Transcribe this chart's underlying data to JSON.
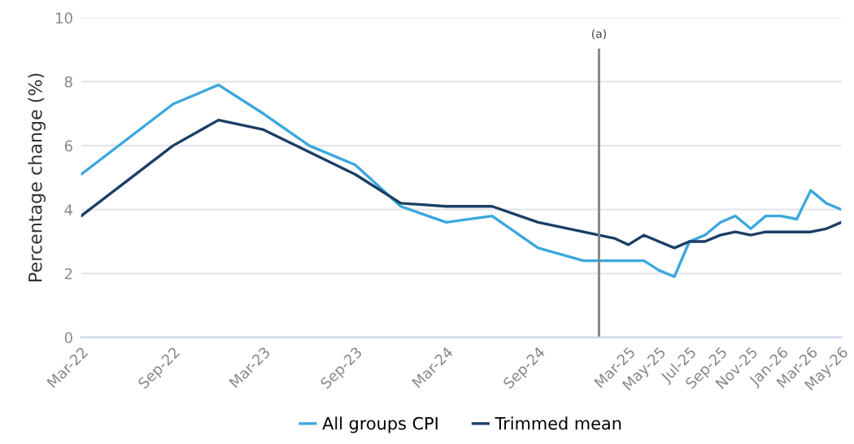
{
  "chart_data": {
    "type": "line",
    "ylabel": "Percentage change (%)",
    "xlim": [
      "2022-03",
      "2026-05"
    ],
    "ylim": [
      0,
      10
    ],
    "yticks": [
      0,
      2,
      4,
      6,
      8,
      10
    ],
    "xticks": [
      {
        "value": "2022-03",
        "label": "Mar-22"
      },
      {
        "value": "2022-09",
        "label": "Sep-22"
      },
      {
        "value": "2023-03",
        "label": "Mar-23"
      },
      {
        "value": "2023-09",
        "label": "Sep-23"
      },
      {
        "value": "2024-03",
        "label": "Mar-24"
      },
      {
        "value": "2024-09",
        "label": "Sep-24"
      },
      {
        "value": "2025-03",
        "label": "Mar-25"
      },
      {
        "value": "2025-05",
        "label": "May-25"
      },
      {
        "value": "2025-07",
        "label": "Jul-25"
      },
      {
        "value": "2025-09",
        "label": "Sep-25"
      },
      {
        "value": "2025-11",
        "label": "Nov-25"
      },
      {
        "value": "2026-01",
        "label": "Jan-26"
      },
      {
        "value": "2026-03",
        "label": "Mar-26"
      },
      {
        "value": "2026-05",
        "label": "May-26"
      }
    ],
    "x": [
      "2022-03",
      "2022-06",
      "2022-09",
      "2022-12",
      "2023-03",
      "2023-06",
      "2023-09",
      "2023-12",
      "2024-03",
      "2024-06",
      "2024-09",
      "2024-12",
      "2025-01",
      "2025-02",
      "2025-03",
      "2025-04",
      "2025-05",
      "2025-06",
      "2025-07",
      "2025-08",
      "2025-09",
      "2025-10",
      "2025-11",
      "2025-12",
      "2026-01",
      "2026-02",
      "2026-03",
      "2026-04",
      "2026-05"
    ],
    "series": [
      {
        "name": "All groups CPI",
        "color": "#3ba7dd",
        "values": [
          5.1,
          6.2,
          7.3,
          7.9,
          7.0,
          6.0,
          5.4,
          4.1,
          3.6,
          3.8,
          2.8,
          2.4,
          2.4,
          2.4,
          2.4,
          2.4,
          2.1,
          1.9,
          3.0,
          3.2,
          3.6,
          3.8,
          3.4,
          3.8,
          3.8,
          3.7,
          4.6,
          4.2,
          4.0
        ]
      },
      {
        "name": "Trimmed mean",
        "color": "#1a3f66",
        "values": [
          3.8,
          4.9,
          6.0,
          6.8,
          6.5,
          5.8,
          5.1,
          4.2,
          4.1,
          4.1,
          3.6,
          3.3,
          3.2,
          3.1,
          2.9,
          3.2,
          3.0,
          2.8,
          3.0,
          3.0,
          3.2,
          3.3,
          3.2,
          3.3,
          3.3,
          3.3,
          3.3,
          3.4,
          3.6
        ]
      }
    ],
    "ref_lines": [
      {
        "axis": "x",
        "value": "2025-01",
        "label": "(a)",
        "color": "#808080"
      }
    ],
    "grid": "y",
    "legend": "bottom",
    "marker": "none",
    "line_style": "solid"
  }
}
